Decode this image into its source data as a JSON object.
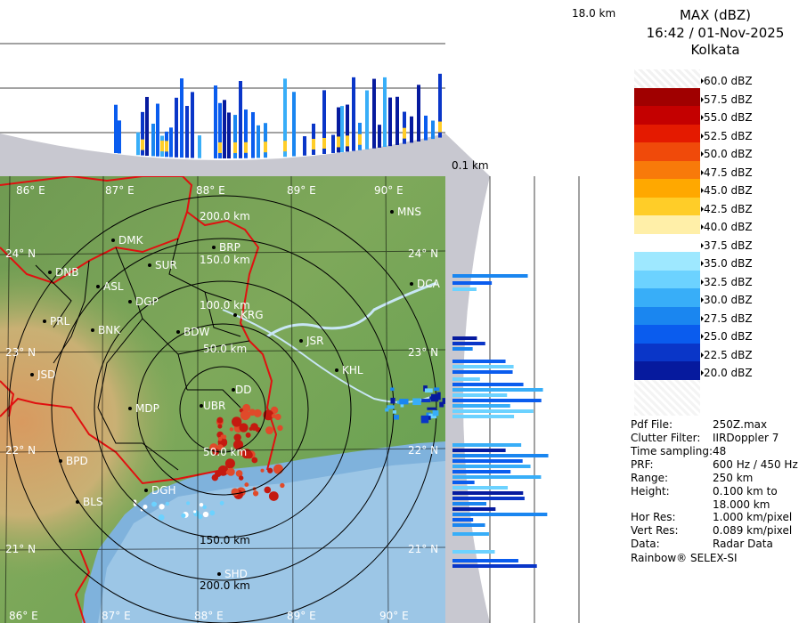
{
  "title": {
    "product": "MAX (dBZ)",
    "datetime": "16:42 / 01-Nov-2025",
    "station": "Kolkata"
  },
  "top_height_label": "18.0 km",
  "bottom_height_label": "0.1 km",
  "legend": [
    {
      "label": "60.0 dBZ",
      "color": "checker"
    },
    {
      "label": "57.5 dBZ",
      "color": "#a00000"
    },
    {
      "label": "55.0 dBZ",
      "color": "#c40000"
    },
    {
      "label": "52.5 dBZ",
      "color": "#e41a00"
    },
    {
      "label": "50.0 dBZ",
      "color": "#f04a0a"
    },
    {
      "label": "47.5 dBZ",
      "color": "#f87a0a"
    },
    {
      "label": "45.0 dBZ",
      "color": "#ffa800"
    },
    {
      "label": "42.5 dBZ",
      "color": "#ffcd28"
    },
    {
      "label": "40.0 dBZ",
      "color": "#ffefa8"
    },
    {
      "label": "37.5 dBZ",
      "color": "#ffffff"
    },
    {
      "label": "35.0 dBZ",
      "color": "#9ee8ff"
    },
    {
      "label": "32.5 dBZ",
      "color": "#6cd2ff"
    },
    {
      "label": "30.0 dBZ",
      "color": "#38aef8"
    },
    {
      "label": "27.5 dBZ",
      "color": "#1a86f0"
    },
    {
      "label": "25.0 dBZ",
      "color": "#0a5cee"
    },
    {
      "label": "22.5 dBZ",
      "color": "#0a36c8"
    },
    {
      "label": "20.0 dBZ",
      "color": "#061a9e"
    }
  ],
  "metadata": [
    {
      "key": "Pdf File:",
      "value": "250Z.max"
    },
    {
      "key": "Clutter Filter:",
      "value": "IIRDoppler 7"
    },
    {
      "key": "Time sampling:",
      "value": "48"
    },
    {
      "key": "PRF:",
      "value": "600 Hz / 450 Hz"
    },
    {
      "key": "Range:",
      "value": "250 km"
    },
    {
      "key": "Height:",
      "value": "0.100 km to"
    },
    {
      "key": "",
      "value": "18.000 km"
    },
    {
      "key": "Hor Res:",
      "value": "1.000 km/pixel"
    },
    {
      "key": "Vert Res:",
      "value": "0.089 km/pixel"
    },
    {
      "key": "Data:",
      "value": "Radar Data"
    }
  ],
  "footer": "Rainbow® SELEX-SI",
  "map": {
    "lon_labels": [
      "86° E",
      "87° E",
      "88° E",
      "89° E",
      "90° E"
    ],
    "lat_labels": [
      "24° N",
      "23° N",
      "22° N",
      "21° N"
    ],
    "range_labels": [
      "50.0 km",
      "100.0 km",
      "150.0 km",
      "200.0 km"
    ],
    "towns": [
      {
        "name": "MNS"
      },
      {
        "name": "DMK"
      },
      {
        "name": "BRP"
      },
      {
        "name": "DNB"
      },
      {
        "name": "SUR"
      },
      {
        "name": "ASL"
      },
      {
        "name": "DGP"
      },
      {
        "name": "DCA"
      },
      {
        "name": "KRG"
      },
      {
        "name": "PRL"
      },
      {
        "name": "BNK"
      },
      {
        "name": "BDW"
      },
      {
        "name": "JSR"
      },
      {
        "name": "JSD"
      },
      {
        "name": "KHL"
      },
      {
        "name": "DD"
      },
      {
        "name": "UBR"
      },
      {
        "name": "MDP"
      },
      {
        "name": "BPD"
      },
      {
        "name": "DGH"
      },
      {
        "name": "BLS"
      },
      {
        "name": "SHD"
      }
    ]
  },
  "colors": {
    "panel_gray": "#c8c8c8",
    "ring": "#000000",
    "border_red": "#e01010",
    "district": "#000000",
    "water": "#b4dcf0"
  }
}
